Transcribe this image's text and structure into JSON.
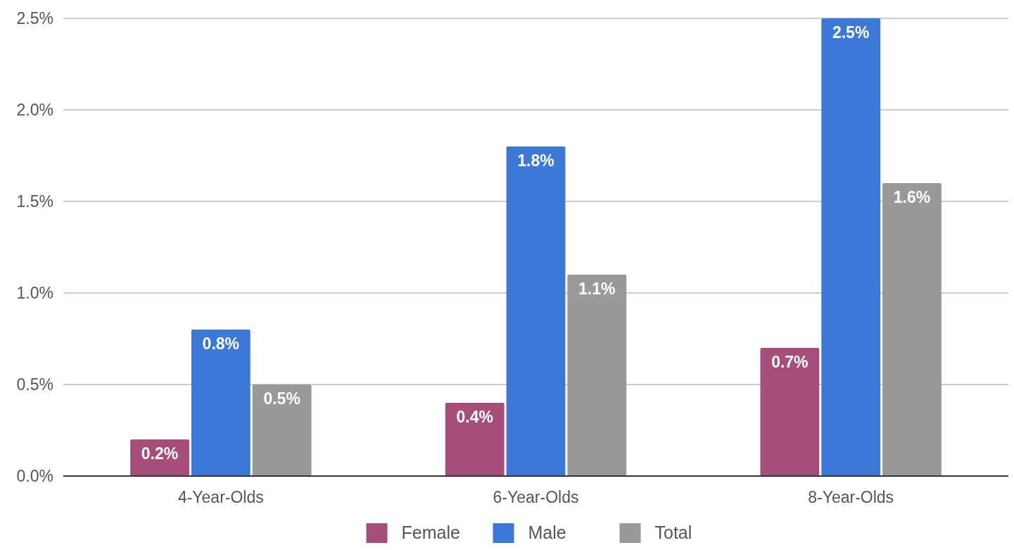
{
  "chart_data": {
    "type": "bar",
    "categories": [
      "4-Year-Olds",
      "6-Year-Olds",
      "8-Year-Olds"
    ],
    "series": [
      {
        "name": "Female",
        "color": "#a64d79",
        "values": [
          0.2,
          0.4,
          0.7
        ],
        "value_labels": [
          "0.2%",
          "0.4%",
          "0.7%"
        ]
      },
      {
        "name": "Male",
        "color": "#3c78d8",
        "values": [
          0.8,
          1.8,
          2.5
        ],
        "value_labels": [
          "0.8%",
          "1.8%",
          "2.5%"
        ]
      },
      {
        "name": "Total",
        "color": "#999999",
        "values": [
          0.5,
          1.1,
          1.6
        ],
        "value_labels": [
          "0.5%",
          "1.1%",
          "1.6%"
        ]
      }
    ],
    "ylim": [
      0,
      2.5
    ],
    "yticks": [
      {
        "value": 0,
        "label": "0.0%"
      },
      {
        "value": 0.5,
        "label": "0.5%"
      },
      {
        "value": 1,
        "label": "1.0%"
      },
      {
        "value": 1.5,
        "label": "1.5%"
      },
      {
        "value": 2,
        "label": "2.0%"
      },
      {
        "value": 2.5,
        "label": "2.5%"
      }
    ],
    "grid": "y",
    "legend": "bottom"
  }
}
